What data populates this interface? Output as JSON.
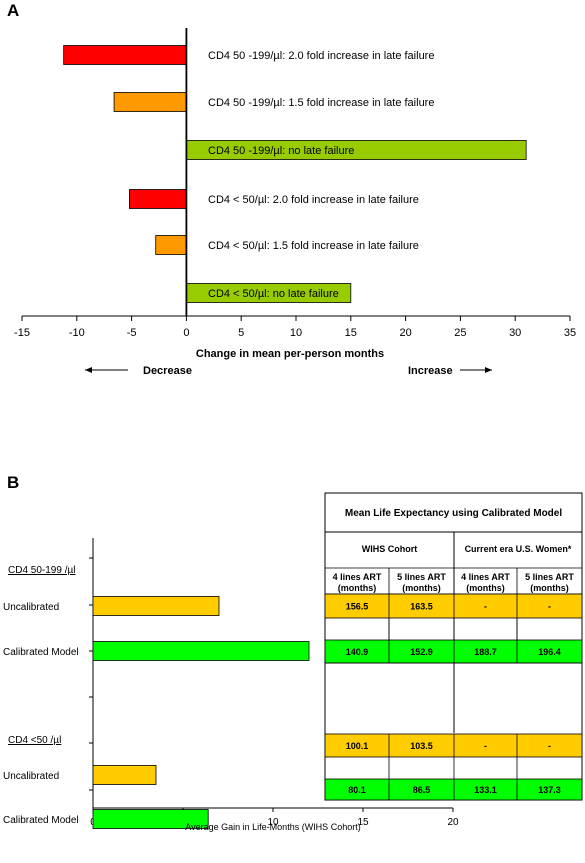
{
  "chart_data": [
    {
      "type": "bar",
      "orientation": "horizontal",
      "panel_label": "A",
      "categories": [
        "CD4 50 -199/µl: 2.0 fold increase in late failure",
        "CD4 50 -199/µl: 1.5 fold increase in late failure",
        "CD4 50 -199/µl: no late failure",
        "CD4 < 50/µl: 2.0 fold increase in late failure",
        "CD4 < 50/µl: 1.5 fold increase in late failure",
        "CD4 < 50/µl: no late failure"
      ],
      "values": [
        -11.2,
        -6.6,
        31.0,
        -5.2,
        -2.8,
        15.0
      ],
      "bar_colors": [
        "#ff0000",
        "#ff9900",
        "#99cc00",
        "#ff0000",
        "#ff9900",
        "#99cc00"
      ],
      "xlabel": "Change in mean per-person months",
      "xlim": [
        -15,
        35
      ],
      "xticks": [
        "-15",
        "-10",
        "-5",
        "0",
        "5",
        "10",
        "15",
        "20",
        "25",
        "30",
        "35"
      ],
      "decrease_label": "Decrease",
      "increase_label": "Increase"
    },
    {
      "type": "bar",
      "orientation": "horizontal",
      "panel_label": "B",
      "groups": [
        {
          "name": "CD4 50-199 /µl",
          "categories": [
            "Uncalibrated",
            "Calibrated Model"
          ],
          "values": [
            7.0,
            12.0
          ]
        },
        {
          "name": "CD4 <50 /µl",
          "categories": [
            "Uncalibrated",
            "Calibrated Model"
          ],
          "values": [
            3.5,
            6.4
          ]
        }
      ],
      "bar_colors": {
        "Uncalibrated": "#ffcc00",
        "Calibrated Model": "#00ff00"
      },
      "xlabel": "Average Gain in Life-Months (WIHS Cohort)",
      "xlim": [
        0,
        20
      ],
      "xticks": [
        "0",
        "5",
        "10",
        "15",
        "20"
      ]
    },
    {
      "type": "table",
      "title": "Mean Life Expectancy using Calibrated Model",
      "header_groups": [
        "WIHS Cohort",
        "Current era U.S. Women*"
      ],
      "columns": [
        "4 lines ART (months)",
        "5 lines ART (months)",
        "4 lines ART (months)",
        "5 lines ART (months)"
      ],
      "rows": [
        [
          "156.5",
          "163.5",
          "-",
          "-"
        ],
        [
          "140.9",
          "152.9",
          "188.7",
          "196.4"
        ],
        [
          "100.1",
          "103.5",
          "-",
          "-"
        ],
        [
          "80.1",
          "86.5",
          "133.1",
          "137.3"
        ]
      ],
      "row_colors": [
        "#ffcc00",
        "#00ff00",
        "#ffcc00",
        "#00ff00"
      ]
    }
  ]
}
